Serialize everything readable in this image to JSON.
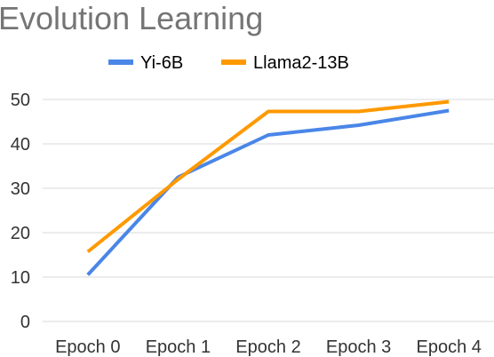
{
  "chart_data": {
    "type": "line",
    "title": "Evolution Learning",
    "categories": [
      "Epoch 0",
      "Epoch 1",
      "Epoch 2",
      "Epoch 3",
      "Epoch 4"
    ],
    "series": [
      {
        "name": "Yi-6B",
        "color": "#4a86e8",
        "values": [
          10.5,
          32.5,
          42.0,
          44.2,
          47.5
        ]
      },
      {
        "name": "Llama2-13B",
        "color": "#ff9900",
        "values": [
          15.7,
          32.0,
          47.3,
          47.3,
          49.5
        ]
      }
    ],
    "ylim": [
      0,
      50
    ],
    "yticks": [
      0,
      10,
      20,
      30,
      40,
      50
    ],
    "grid": true,
    "legend_position": "top"
  }
}
